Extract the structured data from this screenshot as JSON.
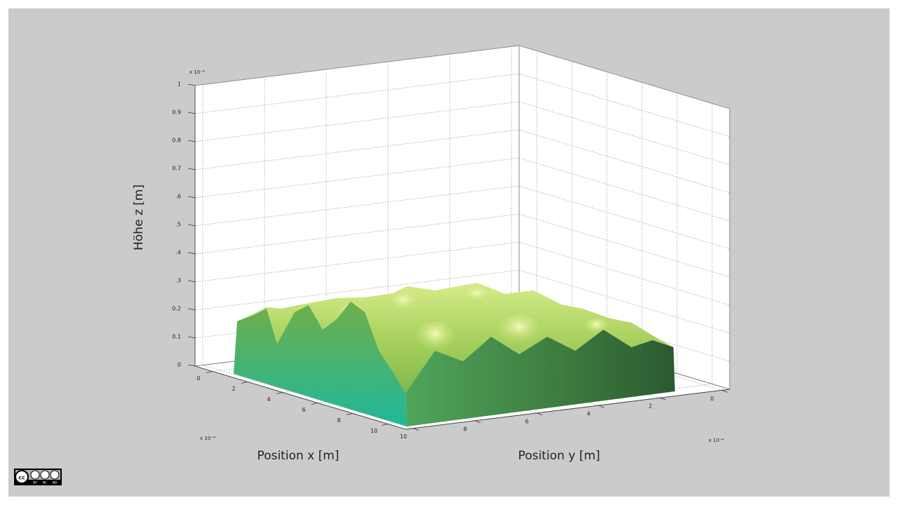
{
  "chart_data": {
    "type": "surface3d",
    "zlabel": "Höhe z [m]",
    "xlabel": "Position x [m]",
    "ylabel": "Position y [m]",
    "xlim": [
      -1,
      11
    ],
    "xticks": [
      0,
      2,
      4,
      6,
      8,
      10
    ],
    "x_multiplier": "x 10⁻⁴",
    "ylim": [
      -0.25,
      10.25
    ],
    "yticks": [
      0,
      2,
      4,
      6,
      8,
      10
    ],
    "y_multiplier": "x 10⁻⁴",
    "zlim": [
      0,
      1
    ],
    "zticks": [
      0,
      0.1,
      0.2,
      {
        "value": 0.3,
        "label": ".3"
      },
      {
        "value": 0.4,
        "label": ".4"
      },
      {
        "value": 0.5,
        "label": ".5"
      },
      {
        "value": 0.6,
        "label": ".6"
      },
      0.7,
      0.8,
      0.9,
      1
    ],
    "z_multiplier": "x 10⁻⁴",
    "grid": true
  },
  "license": {
    "badge": "cc",
    "terms": [
      "BY",
      "NC",
      "ND"
    ]
  }
}
